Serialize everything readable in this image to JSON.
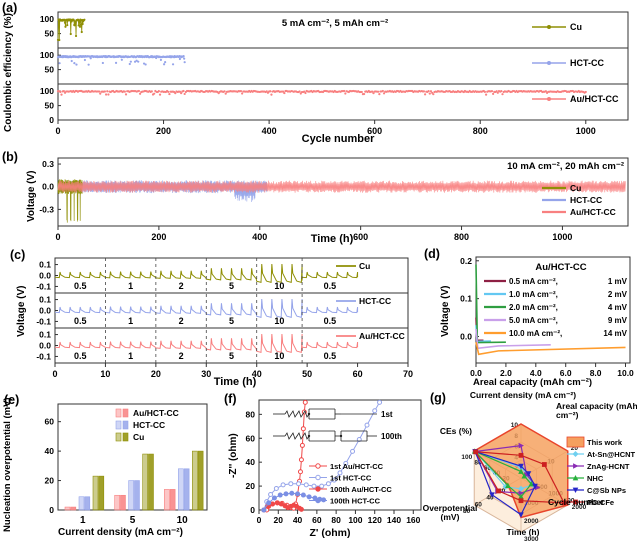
{
  "chart_data": [
    {
      "id": "a",
      "type": "scatter",
      "panel_label": "(a)",
      "xlabel": "Cycle number",
      "ylabel": "Coulombic efficiency (%)",
      "annotation": "5 mA cm⁻², 5 mAh cm⁻²",
      "x_ticks": [
        0,
        200,
        400,
        600,
        800,
        1000
      ],
      "xlim": [
        0,
        1080
      ],
      "y_ticks": [
        0,
        50,
        100
      ],
      "ylim": [
        0,
        125
      ],
      "series": [
        {
          "name": "Cu",
          "color": "#8f8f05",
          "x_end": 50,
          "base": 97,
          "dip_depth": 70,
          "dip_prob": 0.25,
          "n": 60
        },
        {
          "name": "HCT-CC",
          "color": "#95a4ea",
          "x_end": 240,
          "base": 95,
          "dip_depth": 26,
          "dip_prob": 0.12,
          "n": 240
        },
        {
          "name": "Au/HCT-CC",
          "color": "#f88080",
          "x_end": 1000,
          "base": 99,
          "dip_depth": 7,
          "dip_prob": 0.08,
          "n": 450
        }
      ]
    },
    {
      "id": "b",
      "type": "line",
      "panel_label": "(b)",
      "xlabel": "Time (h)",
      "ylabel": "Voltage (V)",
      "annotation": "10 mA cm⁻²,  20 mAh cm⁻²",
      "x_ticks": [
        0,
        200,
        400,
        600,
        800,
        1000
      ],
      "xlim": [
        0,
        1130
      ],
      "y_ticks": [
        0.3,
        0.0,
        -0.3
      ],
      "ylim": [
        -0.52,
        0.38
      ],
      "series": [
        {
          "name": "Cu",
          "color": "#8f8f05",
          "x_end": 48,
          "amp": 0.1,
          "fail_spike": -0.43,
          "spike_times": [
            18,
            25,
            32,
            39,
            44
          ]
        },
        {
          "name": "HCT-CC",
          "color": "#95a4ea",
          "x_end": 415,
          "amp": 0.085,
          "dip_start": 350,
          "dip_end": 392,
          "dip_amp": 0.18
        },
        {
          "name": "Au/HCT-CC",
          "color": "#f88080",
          "x_end": 1125,
          "amp": 0.08
        }
      ]
    },
    {
      "id": "c",
      "type": "line",
      "panel_label": "(c)",
      "xlabel": "Time (h)",
      "ylabel": "Voltage (V)",
      "x_ticks": [
        0,
        10,
        20,
        30,
        40,
        50,
        60,
        70
      ],
      "xlim": [
        0,
        70
      ],
      "y_ticks": [
        0.1,
        0.0,
        -0.1
      ],
      "ylim": [
        -0.16,
        0.16
      ],
      "rate_segments": [
        {
          "label": "0.5",
          "t0": 0,
          "t1": 10
        },
        {
          "label": "1",
          "t0": 10,
          "t1": 20
        },
        {
          "label": "2",
          "t0": 20,
          "t1": 30
        },
        {
          "label": "5",
          "t0": 30,
          "t1": 40
        },
        {
          "label": "10",
          "t0": 40,
          "t1": 49
        },
        {
          "label": "0.5",
          "t0": 49,
          "t1": 60
        }
      ],
      "dashed_lines": [
        10,
        20,
        30,
        40,
        49
      ],
      "series": [
        {
          "name": "Cu",
          "color": "#8f8f05"
        },
        {
          "name": "HCT-CC",
          "color": "#95a4ea"
        },
        {
          "name": "Au/HCT-CC",
          "color": "#f88080"
        }
      ]
    },
    {
      "id": "d",
      "type": "line",
      "panel_label": "(d)",
      "title": "Au/HCT-CC",
      "xlabel": "Areal capacity (mAh cm⁻²)",
      "ylabel": "Voltage (V)",
      "x_ticks": [
        "0.0",
        "2.0",
        "4.0",
        "6.0",
        "8.0",
        "10.0"
      ],
      "xlim": [
        0,
        10.3
      ],
      "y_ticks": [
        "0.0",
        "0.1",
        "0.2"
      ],
      "ylim": [
        -0.07,
        0.21
      ],
      "series": [
        {
          "label": "0.5 mA cm⁻²,",
          "value": "1 mV",
          "color": "#8e2044",
          "points": [
            [
              0,
              0.05
            ],
            [
              0.06,
              -0.01
            ],
            [
              0.5,
              -0.01
            ]
          ]
        },
        {
          "label": "1.0 mA cm⁻²,",
          "value": "2 mV",
          "color": "#63c8f2",
          "points": [
            [
              0,
              0.03
            ],
            [
              0.07,
              -0.013
            ],
            [
              1.0,
              -0.012
            ]
          ]
        },
        {
          "label": "2.0 mA cm⁻²,",
          "value": "4 mV",
          "color": "#2f9e41",
          "points": [
            [
              0,
              0.19
            ],
            [
              0.09,
              -0.016
            ],
            [
              2.0,
              -0.015
            ]
          ]
        },
        {
          "label": "5.0 mA cm⁻²,",
          "value": "9 mV",
          "color": "#c9a0ea",
          "points": [
            [
              0,
              0.02
            ],
            [
              0.12,
              -0.031
            ],
            [
              1.5,
              -0.025
            ],
            [
              5.0,
              -0.022
            ]
          ]
        },
        {
          "label": "10.0 mA cm⁻²,",
          "value": "14 mV",
          "color": "#ff9d2e",
          "points": [
            [
              0,
              -0.015
            ],
            [
              0.18,
              -0.047
            ],
            [
              1.5,
              -0.038
            ],
            [
              10.0,
              -0.029
            ]
          ]
        }
      ]
    },
    {
      "id": "e",
      "type": "bar",
      "panel_label": "(e)",
      "xlabel": "Current density (mA cm⁻²)",
      "ylabel": "Nucleation overpotential (mV)",
      "categories": [
        "1",
        "5",
        "10"
      ],
      "y_ticks": [
        0,
        20,
        40,
        60
      ],
      "ylim": [
        0,
        72
      ],
      "series": [
        {
          "name": "Au/HCT-CC",
          "color": "#f88080",
          "values": [
            2,
            10,
            14
          ]
        },
        {
          "name": "HCT-CC",
          "color": "#95a4ea",
          "values": [
            9,
            20,
            28
          ]
        },
        {
          "name": "Cu",
          "color": "#8f8f05",
          "values": [
            23,
            38,
            40
          ]
        }
      ]
    },
    {
      "id": "f",
      "type": "scatter",
      "panel_label": "(f)",
      "xlabel": "Z' (ohm)",
      "ylabel": "-Z'' (ohm)",
      "x_ticks": [
        0,
        20,
        40,
        60,
        80,
        100,
        120,
        140,
        160
      ],
      "xlim": [
        0,
        168
      ],
      "y_ticks": [
        0,
        20,
        40,
        60,
        80
      ],
      "ylim": [
        0,
        92
      ],
      "inset_labels": [
        "1st",
        "100th"
      ],
      "series": [
        {
          "name": "1st Au/HCT-CC",
          "color": "#f04848",
          "marker": "open",
          "points": [
            [
              8,
              0
            ],
            [
              10,
              3
            ],
            [
              14,
              5
            ],
            [
              19,
              6
            ],
            [
              24,
              5.5
            ],
            [
              29,
              4
            ],
            [
              33,
              2
            ],
            [
              36,
              1.5
            ],
            [
              38,
              5
            ],
            [
              40,
              13
            ],
            [
              42,
              24
            ],
            [
              43,
              32
            ],
            [
              44,
              42
            ],
            [
              45,
              54
            ],
            [
              46,
              68
            ],
            [
              47,
              82
            ],
            [
              48,
              90
            ]
          ]
        },
        {
          "name": "1st HCT-CC",
          "color": "#95a4ea",
          "marker": "open",
          "points": [
            [
              5,
              0
            ],
            [
              8,
              7
            ],
            [
              12,
              13
            ],
            [
              18,
              18
            ],
            [
              25,
              21
            ],
            [
              33,
              22
            ],
            [
              41,
              22
            ],
            [
              49,
              21
            ],
            [
              57,
              20
            ],
            [
              65,
              20
            ],
            [
              72,
              22
            ],
            [
              78,
              25
            ],
            [
              84,
              31
            ],
            [
              90,
              39
            ],
            [
              97,
              49
            ],
            [
              104,
              59
            ],
            [
              112,
              71
            ],
            [
              120,
              83
            ],
            [
              125,
              90
            ]
          ]
        },
        {
          "name": "100th Au/HCT-CC",
          "color": "#f04848",
          "marker": "filled",
          "points": [
            [
              5,
              0
            ],
            [
              9,
              3
            ],
            [
              14,
              5
            ],
            [
              19,
              6
            ],
            [
              23,
              5
            ],
            [
              27,
              3.5
            ],
            [
              30,
              2
            ],
            [
              33,
              3
            ],
            [
              36,
              4
            ],
            [
              39,
              3
            ],
            [
              42,
              1.5
            ],
            [
              44,
              0.5
            ]
          ]
        },
        {
          "name": "100th HCT-CC",
          "color": "#7b8fe4",
          "marker": "filled",
          "points": [
            [
              5,
              0
            ],
            [
              10,
              6
            ],
            [
              16,
              10
            ],
            [
              22,
              12.5
            ],
            [
              28,
              13.5
            ],
            [
              34,
              14
            ],
            [
              40,
              13.5
            ],
            [
              46,
              12.5
            ],
            [
              52,
              11
            ],
            [
              58,
              10
            ],
            [
              63,
              9
            ],
            [
              67,
              8.5
            ]
          ]
        }
      ]
    },
    {
      "id": "g",
      "type": "radar",
      "panel_label": "(g)",
      "axes": [
        {
          "label": "Current density (mA cm⁻²)",
          "ticks": [
            "2",
            "4",
            "6",
            "8",
            "10"
          ]
        },
        {
          "label": "Areal capacity (mAh cm⁻²)",
          "ticks": [
            "10",
            "20"
          ]
        },
        {
          "label": "Cycle number",
          "ticks": [
            "500",
            "1000",
            "1500",
            "2000"
          ]
        },
        {
          "label": "Time (h)",
          "ticks": [
            "1000",
            "2000",
            "3000"
          ]
        },
        {
          "label": "Overpotential (mV)",
          "ticks": [
            "20",
            "40",
            "60",
            "80"
          ]
        },
        {
          "label": "CEs (%)",
          "ticks": [
            "20",
            "40",
            "60",
            "80",
            "100"
          ]
        }
      ],
      "series": [
        {
          "name": "This work",
          "color": "#e8452c",
          "fill": "#f5a05f",
          "marker": "area",
          "values": [
            1,
            1,
            1,
            0.73,
            0.27,
            1
          ]
        },
        {
          "name": "At-Sn@HCNT",
          "color": "#6fd0f0",
          "marker": "diamond",
          "values": [
            0.2,
            0.12,
            0.25,
            0.2,
            0.33,
            0.97
          ]
        },
        {
          "name": "ZnAg-HCNT",
          "color": "#8a2bb4",
          "marker": "tri-right",
          "values": [
            0.6,
            0.12,
            0.35,
            0.28,
            0.5,
            0.98
          ]
        },
        {
          "name": "NHC",
          "color": "#27b03c",
          "marker": "tri-up",
          "values": [
            0.12,
            0.07,
            0.22,
            0.35,
            0.28,
            0.99
          ]
        },
        {
          "name": "C@Sb NPs",
          "color": "#2525c8",
          "marker": "tri-down",
          "values": [
            0.22,
            0.16,
            0.3,
            0.68,
            0.62,
            0.98
          ]
        },
        {
          "name": "PC-CFe",
          "color": "#cc2020",
          "marker": "square",
          "values": [
            0.42,
            0.5,
            0.92,
            0.42,
            0.48,
            0.97
          ]
        }
      ]
    }
  ]
}
